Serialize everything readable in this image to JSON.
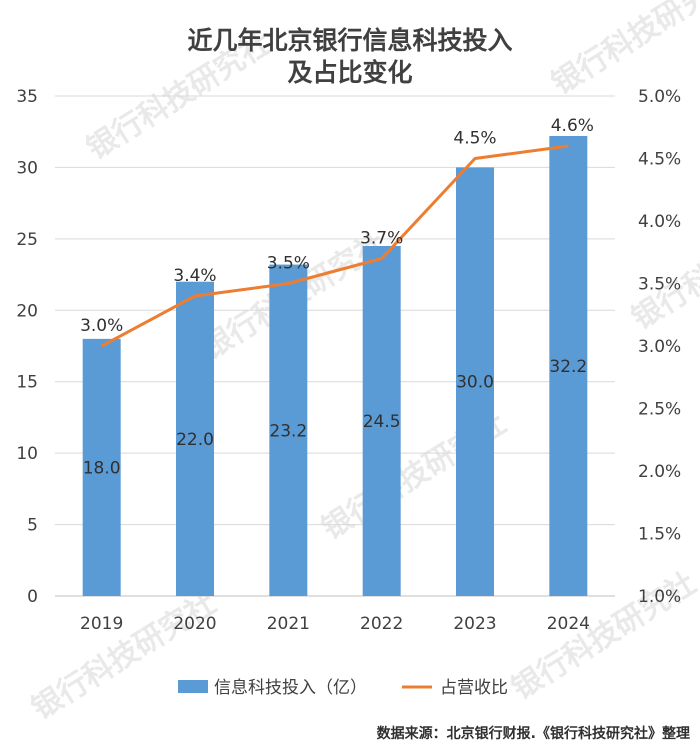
{
  "chart_data": {
    "type": "bar",
    "title_lines": [
      "近几年北京银行信息科技投入",
      "及占比变化"
    ],
    "categories": [
      "2019",
      "2020",
      "2021",
      "2022",
      "2023",
      "2024"
    ],
    "series": [
      {
        "name": "信息科技投入（亿）",
        "type": "bar",
        "axis": "left",
        "color": "#5b9bd5",
        "values": [
          18.0,
          22.0,
          23.2,
          24.5,
          30.0,
          32.2
        ],
        "labels": [
          "18.0",
          "22.0",
          "23.2",
          "24.5",
          "30.0",
          "32.2"
        ]
      },
      {
        "name": "占营收比",
        "type": "line",
        "axis": "right",
        "color": "#ed7d31",
        "values": [
          3.0,
          3.4,
          3.5,
          3.7,
          4.5,
          4.6
        ],
        "labels": [
          "3.0%",
          "3.4%",
          "3.5%",
          "3.7%",
          "4.5%",
          "4.6%"
        ]
      }
    ],
    "left_axis": {
      "ylim": [
        0,
        35
      ],
      "ticks": [
        "0",
        "5",
        "10",
        "15",
        "20",
        "25",
        "30",
        "35"
      ]
    },
    "right_axis": {
      "ylim": [
        1.0,
        5.0
      ],
      "ticks": [
        "1.0%",
        "1.5%",
        "2.0%",
        "2.5%",
        "3.0%",
        "3.5%",
        "4.0%",
        "4.5%",
        "5.0%"
      ]
    },
    "grid": true,
    "legend_position": "bottom"
  },
  "source_note": "数据来源：北京银行财报.《银行科技研究社》整理",
  "watermark": "银行科技研究社"
}
